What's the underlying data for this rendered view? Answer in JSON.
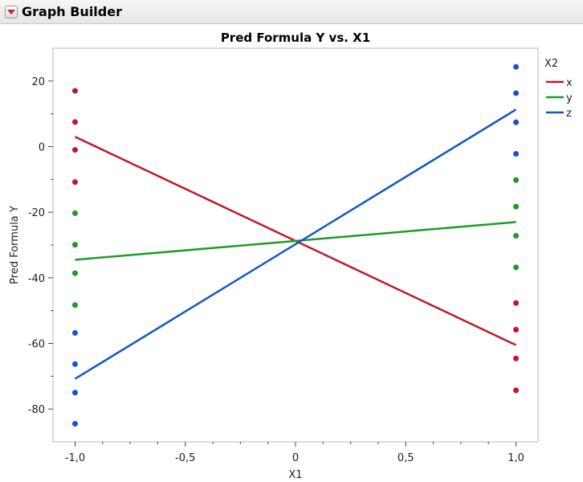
{
  "app": {
    "title": "Graph Builder",
    "disclosure_icon": "red-triangle-menu-icon"
  },
  "chart_data": {
    "type": "line",
    "title": "Pred Formula Y vs. X1",
    "xlabel": "X1",
    "ylabel": "Pred Formula Y",
    "xlim": [
      -1.1,
      1.1
    ],
    "ylim": [
      -90,
      30
    ],
    "xticks": [
      -1.0,
      -0.5,
      0,
      0.5,
      1.0
    ],
    "xtick_labels": [
      "-1,0",
      "-0,5",
      "0",
      "0,5",
      "1,0"
    ],
    "yticks": [
      20,
      0,
      -20,
      -40,
      -60,
      -80
    ],
    "ytick_labels": [
      "20",
      "0",
      "-20",
      "-40",
      "-60",
      "-80"
    ],
    "grid": false,
    "legend": {
      "title": "X2",
      "position": "right"
    },
    "series": [
      {
        "name": "x",
        "color": "#c0182b",
        "line": {
          "x": [
            -1.0,
            1.0
          ],
          "y": [
            3,
            -60.5
          ]
        },
        "points": [
          {
            "x": -1.0,
            "y": 17
          },
          {
            "x": -1.0,
            "y": 7.5
          },
          {
            "x": -1.0,
            "y": -1
          },
          {
            "x": -1.0,
            "y": -10.8
          },
          {
            "x": 1.0,
            "y": -47.7
          },
          {
            "x": 1.0,
            "y": -55.8
          },
          {
            "x": 1.0,
            "y": -64.6
          },
          {
            "x": 1.0,
            "y": -74.3
          }
        ]
      },
      {
        "name": "y",
        "color": "#1e9a28",
        "line": {
          "x": [
            -1.0,
            1.0
          ],
          "y": [
            -34.5,
            -23
          ]
        },
        "points": [
          {
            "x": -1.0,
            "y": -20.3
          },
          {
            "x": -1.0,
            "y": -29.9
          },
          {
            "x": -1.0,
            "y": -38.6
          },
          {
            "x": -1.0,
            "y": -48.3
          },
          {
            "x": 1.0,
            "y": -10.2
          },
          {
            "x": 1.0,
            "y": -18.3
          },
          {
            "x": 1.0,
            "y": -27.2
          },
          {
            "x": 1.0,
            "y": -36.8
          }
        ]
      },
      {
        "name": "z",
        "color": "#1257c8",
        "line": {
          "x": [
            -1.0,
            1.0
          ],
          "y": [
            -70.8,
            11.3
          ]
        },
        "points": [
          {
            "x": -1.0,
            "y": -56.8
          },
          {
            "x": -1.0,
            "y": -66.3
          },
          {
            "x": -1.0,
            "y": -75
          },
          {
            "x": -1.0,
            "y": -84.5
          },
          {
            "x": 1.0,
            "y": 24.3
          },
          {
            "x": 1.0,
            "y": 16.3
          },
          {
            "x": 1.0,
            "y": 7.4
          },
          {
            "x": 1.0,
            "y": -2.2
          }
        ]
      }
    ]
  }
}
